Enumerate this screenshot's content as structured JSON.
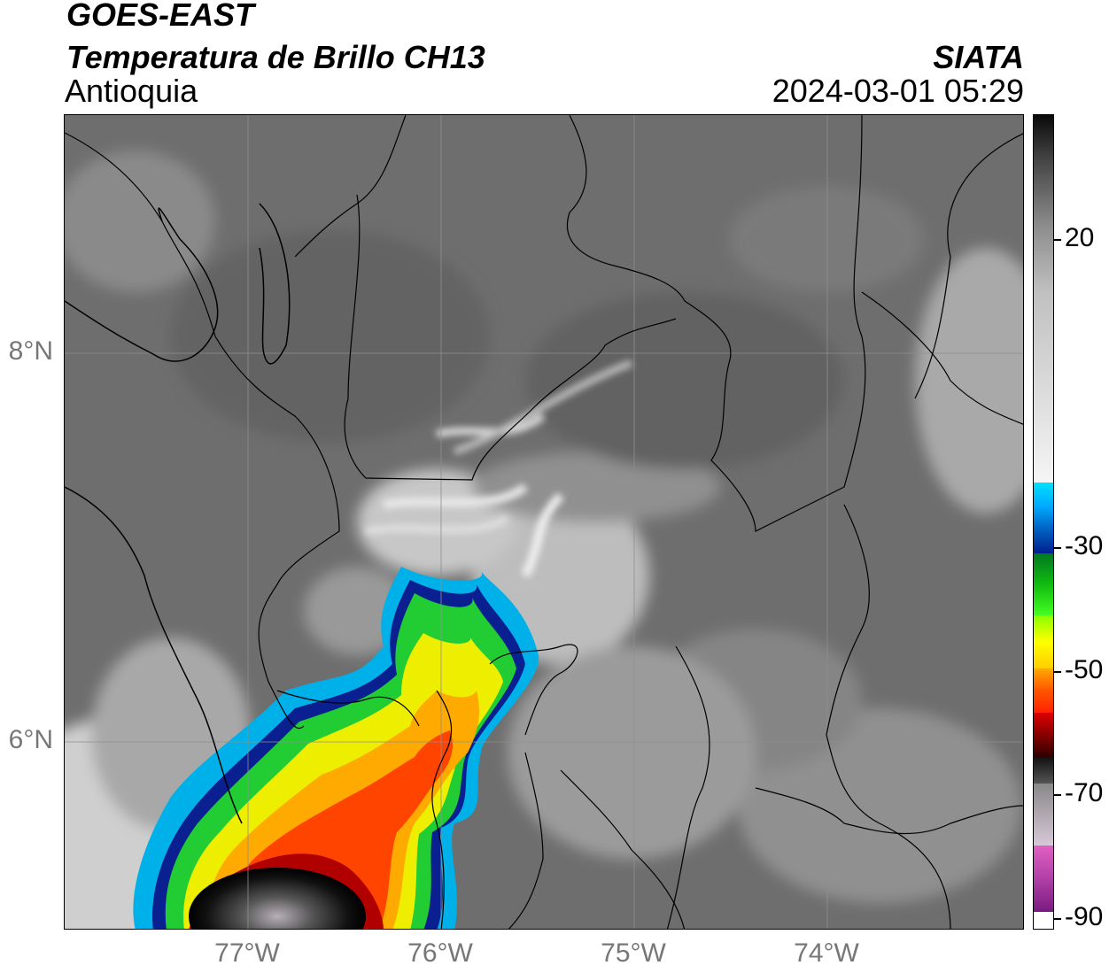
{
  "header": {
    "satellite": "GOES-EAST",
    "product": "Temperatura de Brillo CH13",
    "region": "Antioquia",
    "org": "SIATA",
    "datetime": "2024-03-01 05:29"
  },
  "axes": {
    "lat_ticks": [
      "8°N",
      "6°N"
    ],
    "lon_ticks": [
      "77°W",
      "76°W",
      "75°W",
      "74°W"
    ]
  },
  "colorbar": {
    "labels": [
      "20",
      "-30",
      "-50",
      "-70",
      "-90"
    ],
    "colors": [
      "#ffffff",
      "#8a2d8c",
      "#e04fb0",
      "#111111",
      "#b30000",
      "#ff3300",
      "#ffaa00",
      "#ffff00",
      "#22dd22",
      "#007722",
      "#001f8f",
      "#00aaff",
      "#f5f5f5",
      "#444444",
      "#0a0a0a"
    ]
  }
}
